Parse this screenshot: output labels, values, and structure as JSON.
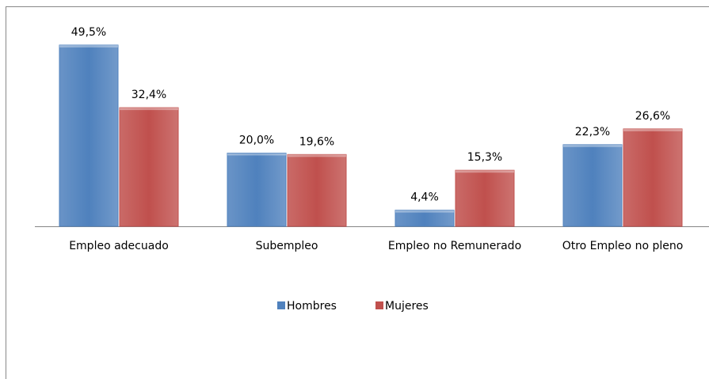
{
  "chart_data": {
    "type": "bar",
    "categories": [
      "Empleo adecuado",
      "Subempleo",
      "Empleo no Remunerado",
      "Otro Empleo no pleno"
    ],
    "series": [
      {
        "name": "Hombres",
        "color": "#4f81bd",
        "values": [
          49.5,
          20.0,
          4.4,
          22.3
        ],
        "value_labels": [
          "49,5%",
          "20,0%",
          "4,4%",
          "22,3%"
        ]
      },
      {
        "name": "Mujeres",
        "color": "#c0504d",
        "values": [
          32.4,
          19.6,
          15.3,
          26.6
        ],
        "value_labels": [
          "32,4%",
          "19,6%",
          "15,3%",
          "26,6%"
        ]
      }
    ],
    "legend": "bottom"
  }
}
